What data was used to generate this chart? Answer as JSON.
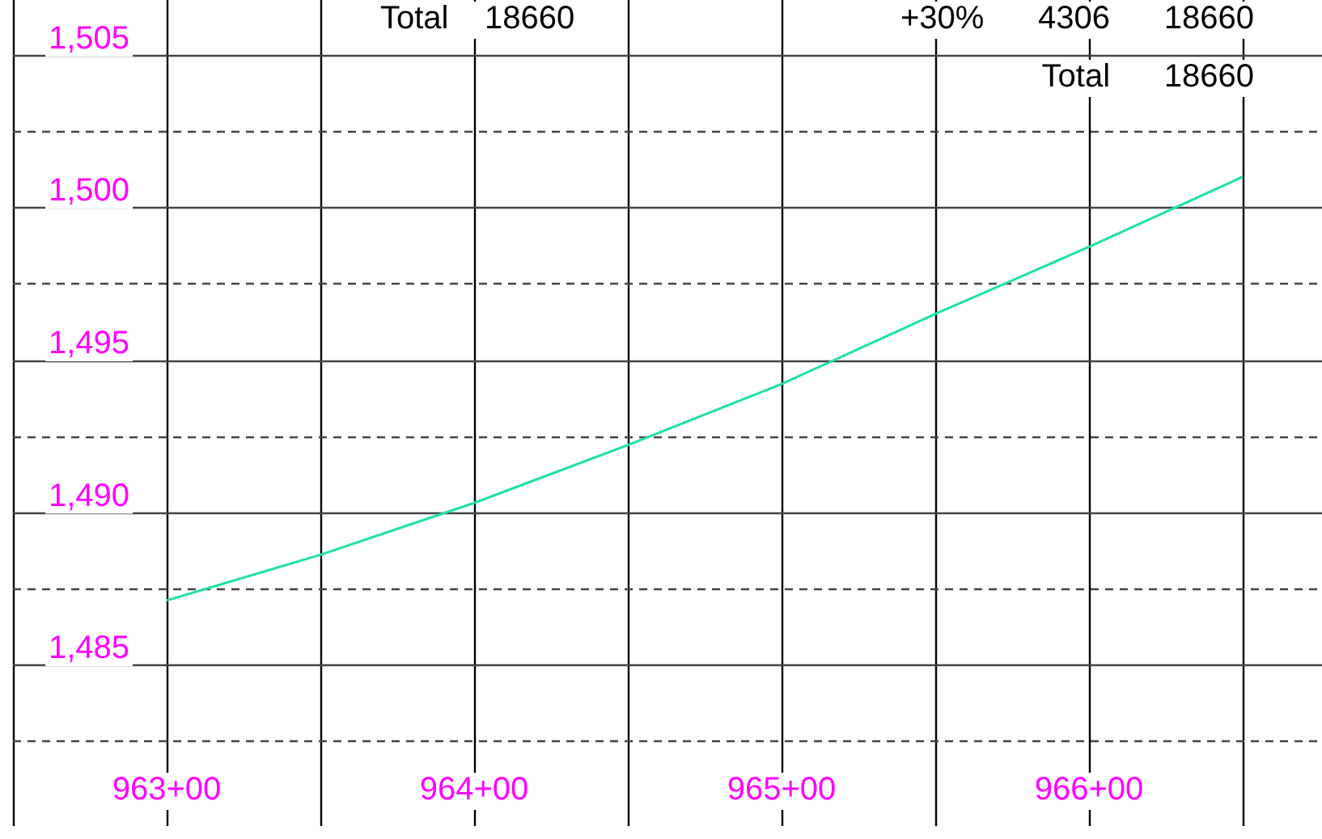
{
  "chart_data": {
    "type": "line",
    "annotations": [
      "Total    18660",
      "+30%      4306      18660",
      "Total      18660"
    ],
    "categories": [
      null,
      "963+00",
      null,
      "964+00",
      null,
      "965+00",
      null,
      "966+00",
      null
    ],
    "series": [
      {
        "color": "#1de39d",
        "values": [
          null,
          1487.1,
          1488.6,
          1490.3,
          1492.2,
          1494.2,
          1496.5,
          1498.7,
          1501.0
        ]
      }
    ],
    "ylim": [
      1479.7,
      1506.8
    ],
    "yticks": [
      {
        "value": 1482.5,
        "label": null
      },
      {
        "value": 1485,
        "label": "1,485"
      },
      {
        "value": 1487.5,
        "label": null
      },
      {
        "value": 1490,
        "label": "1,490"
      },
      {
        "value": 1492.5,
        "label": null
      },
      {
        "value": 1495,
        "label": "1,495"
      },
      {
        "value": 1497.5,
        "label": null
      },
      {
        "value": 1500,
        "label": "1,500"
      },
      {
        "value": 1502.5,
        "label": null
      },
      {
        "value": 1505,
        "label": "1,505"
      }
    ],
    "grid": true,
    "legend": false,
    "marker": "none",
    "line_style": "solid"
  }
}
